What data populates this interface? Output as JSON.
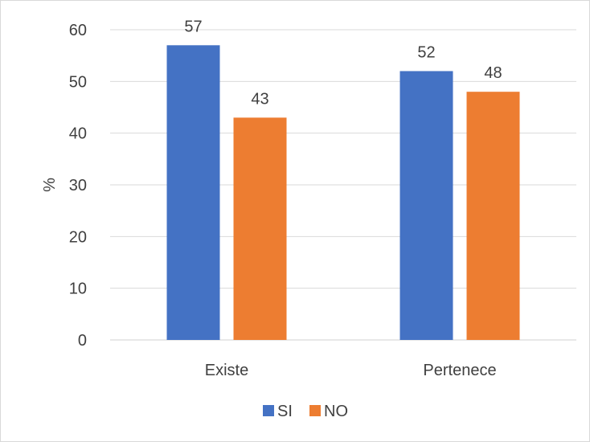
{
  "chart_data": {
    "type": "bar",
    "title": "",
    "xlabel": "",
    "ylabel": "%",
    "ylim": [
      0,
      60
    ],
    "yticks": [
      0,
      10,
      20,
      30,
      40,
      50,
      60
    ],
    "categories": [
      "Existe",
      "Pertenece"
    ],
    "series": [
      {
        "name": "SI",
        "values": [
          57,
          52
        ],
        "color": "#4472c4"
      },
      {
        "name": "NO",
        "values": [
          43,
          48
        ],
        "color": "#ed7d31"
      }
    ],
    "data_labels": [
      [
        "57",
        "52"
      ],
      [
        "43",
        "48"
      ]
    ],
    "grid": true,
    "legend_position": "bottom"
  }
}
